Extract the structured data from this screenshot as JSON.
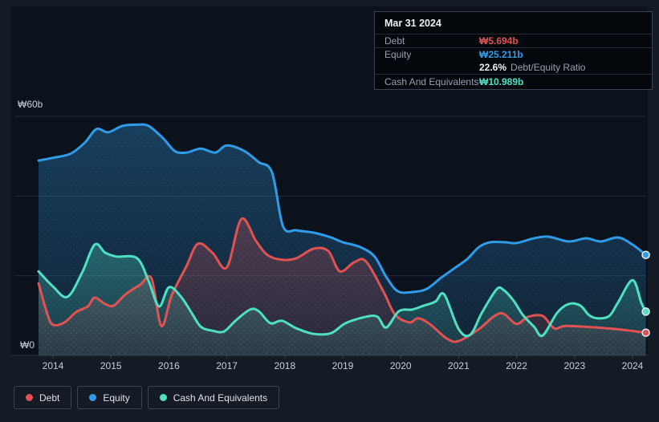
{
  "tooltip": {
    "date": "Mar 31 2024",
    "debt_label": "Debt",
    "debt_value": "₩5.694b",
    "equity_label": "Equity",
    "equity_value": "₩25.211b",
    "ratio_value": "22.6%",
    "ratio_label": "Debt/Equity Ratio",
    "cash_label": "Cash And Equivalents",
    "cash_value": "₩10.989b"
  },
  "axis": {
    "y_top_label": "₩60b",
    "y_bottom_label": "₩0",
    "years": [
      "2014",
      "2015",
      "2016",
      "2017",
      "2018",
      "2019",
      "2020",
      "2021",
      "2022",
      "2023",
      "2024"
    ]
  },
  "legend": {
    "items": [
      {
        "label": "Debt",
        "color": "#e25252"
      },
      {
        "label": "Equity",
        "color": "#2f9ce8"
      },
      {
        "label": "Cash And Equivalents",
        "color": "#4fe0c3"
      }
    ]
  },
  "chart_data": {
    "type": "area",
    "x_range": [
      2013.75,
      2024.25
    ],
    "ylim": [
      0,
      60
    ],
    "y_unit": "₩b",
    "grid": true,
    "gridline_values_b": [
      60,
      40,
      20,
      0
    ],
    "legend_position": "bottom-left",
    "hover_point": {
      "date": "Mar 31 2024",
      "debt_b": 5.694,
      "equity_b": 25.211,
      "cash_b": 10.989,
      "debt_equity_ratio_pct": 22.6
    },
    "series": [
      {
        "name": "Debt",
        "color": "#e25252",
        "points": [
          [
            2013.75,
            18.1
          ],
          [
            2013.9,
            10.5
          ],
          [
            2014.0,
            7.7
          ],
          [
            2014.2,
            8.3
          ],
          [
            2014.4,
            10.9
          ],
          [
            2014.6,
            12.3
          ],
          [
            2014.72,
            14.5
          ],
          [
            2014.9,
            12.9
          ],
          [
            2015.05,
            12.5
          ],
          [
            2015.25,
            15.3
          ],
          [
            2015.5,
            17.7
          ],
          [
            2015.7,
            19.3
          ],
          [
            2015.87,
            7.4
          ],
          [
            2016.05,
            15.1
          ],
          [
            2016.3,
            22.3
          ],
          [
            2016.5,
            28.0
          ],
          [
            2016.75,
            25.8
          ],
          [
            2017.0,
            22.1
          ],
          [
            2017.25,
            34.2
          ],
          [
            2017.5,
            28.8
          ],
          [
            2017.7,
            25.2
          ],
          [
            2017.95,
            24.0
          ],
          [
            2018.2,
            24.4
          ],
          [
            2018.5,
            26.8
          ],
          [
            2018.75,
            26.2
          ],
          [
            2018.95,
            21.1
          ],
          [
            2019.2,
            23.4
          ],
          [
            2019.4,
            23.6
          ],
          [
            2019.7,
            16.1
          ],
          [
            2019.9,
            10.3
          ],
          [
            2020.15,
            8.3
          ],
          [
            2020.3,
            9.3
          ],
          [
            2020.5,
            7.9
          ],
          [
            2020.8,
            4.2
          ],
          [
            2021.0,
            3.6
          ],
          [
            2021.35,
            6.6
          ],
          [
            2021.6,
            9.7
          ],
          [
            2021.77,
            10.5
          ],
          [
            2022.0,
            7.9
          ],
          [
            2022.2,
            9.7
          ],
          [
            2022.45,
            9.9
          ],
          [
            2022.65,
            6.8
          ],
          [
            2022.85,
            7.4
          ],
          [
            2023.4,
            7.0
          ],
          [
            2023.85,
            6.4
          ],
          [
            2024.23,
            5.694
          ]
        ]
      },
      {
        "name": "Equity",
        "color": "#2f9ce8",
        "points": [
          [
            2013.75,
            48.9
          ],
          [
            2014.0,
            49.6
          ],
          [
            2014.3,
            50.6
          ],
          [
            2014.55,
            53.4
          ],
          [
            2014.75,
            56.8
          ],
          [
            2014.95,
            56.0
          ],
          [
            2015.2,
            57.6
          ],
          [
            2015.45,
            57.9
          ],
          [
            2015.65,
            57.6
          ],
          [
            2015.9,
            54.5
          ],
          [
            2016.1,
            51.3
          ],
          [
            2016.3,
            50.9
          ],
          [
            2016.55,
            51.9
          ],
          [
            2016.8,
            50.9
          ],
          [
            2017.0,
            52.7
          ],
          [
            2017.3,
            51.3
          ],
          [
            2017.55,
            48.5
          ],
          [
            2017.78,
            45.9
          ],
          [
            2017.97,
            32.4
          ],
          [
            2018.2,
            31.4
          ],
          [
            2018.5,
            30.8
          ],
          [
            2018.8,
            29.6
          ],
          [
            2019.0,
            28.4
          ],
          [
            2019.3,
            27.2
          ],
          [
            2019.55,
            24.8
          ],
          [
            2019.75,
            19.7
          ],
          [
            2019.95,
            16.1
          ],
          [
            2020.2,
            15.9
          ],
          [
            2020.45,
            16.7
          ],
          [
            2020.7,
            19.5
          ],
          [
            2020.95,
            22.1
          ],
          [
            2021.15,
            24.2
          ],
          [
            2021.35,
            27.2
          ],
          [
            2021.55,
            28.4
          ],
          [
            2021.8,
            28.4
          ],
          [
            2022.0,
            28.2
          ],
          [
            2022.3,
            29.4
          ],
          [
            2022.55,
            29.8
          ],
          [
            2022.9,
            28.6
          ],
          [
            2023.2,
            29.4
          ],
          [
            2023.45,
            28.6
          ],
          [
            2023.75,
            29.6
          ],
          [
            2024.0,
            27.8
          ],
          [
            2024.23,
            25.211
          ]
        ]
      },
      {
        "name": "Cash And Equivalents",
        "color": "#4fe0c3",
        "points": [
          [
            2013.75,
            21.1
          ],
          [
            2014.0,
            17.3
          ],
          [
            2014.25,
            14.7
          ],
          [
            2014.5,
            20.7
          ],
          [
            2014.72,
            27.8
          ],
          [
            2014.9,
            25.8
          ],
          [
            2015.1,
            24.8
          ],
          [
            2015.45,
            24.4
          ],
          [
            2015.65,
            18.7
          ],
          [
            2015.83,
            12.3
          ],
          [
            2016.0,
            17.1
          ],
          [
            2016.2,
            14.9
          ],
          [
            2016.4,
            10.5
          ],
          [
            2016.55,
            7.2
          ],
          [
            2016.75,
            6.2
          ],
          [
            2016.95,
            6.0
          ],
          [
            2017.15,
            8.7
          ],
          [
            2017.4,
            11.5
          ],
          [
            2017.55,
            11.1
          ],
          [
            2017.75,
            8.1
          ],
          [
            2017.95,
            8.7
          ],
          [
            2018.2,
            6.8
          ],
          [
            2018.5,
            5.4
          ],
          [
            2018.8,
            5.6
          ],
          [
            2019.05,
            8.1
          ],
          [
            2019.4,
            9.7
          ],
          [
            2019.6,
            9.7
          ],
          [
            2019.75,
            7.0
          ],
          [
            2019.97,
            11.1
          ],
          [
            2020.2,
            11.5
          ],
          [
            2020.4,
            12.5
          ],
          [
            2020.6,
            13.5
          ],
          [
            2020.75,
            15.3
          ],
          [
            2021.0,
            6.6
          ],
          [
            2021.2,
            5.2
          ],
          [
            2021.4,
            10.7
          ],
          [
            2021.65,
            16.5
          ],
          [
            2021.77,
            16.5
          ],
          [
            2021.95,
            13.7
          ],
          [
            2022.1,
            10.3
          ],
          [
            2022.3,
            7.2
          ],
          [
            2022.45,
            5.0
          ],
          [
            2022.7,
            10.7
          ],
          [
            2022.9,
            12.9
          ],
          [
            2023.1,
            12.5
          ],
          [
            2023.25,
            10.1
          ],
          [
            2023.4,
            9.3
          ],
          [
            2023.6,
            9.9
          ],
          [
            2023.75,
            13.3
          ],
          [
            2024.0,
            18.9
          ],
          [
            2024.15,
            13.3
          ],
          [
            2024.23,
            10.989
          ]
        ]
      }
    ]
  }
}
